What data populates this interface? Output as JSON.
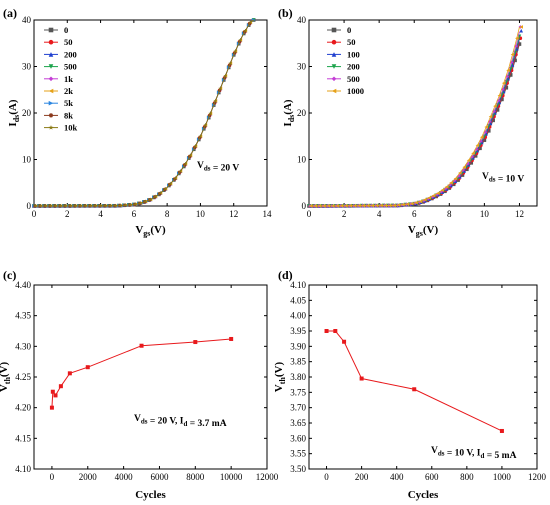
{
  "panels": {
    "a": {
      "label": "(a)"
    },
    "b": {
      "label": "(b)"
    },
    "c": {
      "label": "(c)"
    },
    "d": {
      "label": "(d)"
    }
  },
  "chart_data": [
    {
      "id": "a",
      "type": "line",
      "xlabel": "Vgs(V)",
      "ylabel": "Ids(A)",
      "xlim": [
        0,
        14
      ],
      "ylim": [
        0,
        40
      ],
      "xticks": [
        "0",
        "2",
        "4",
        "6",
        "8",
        "10",
        "12",
        "14"
      ],
      "yticks": [
        "0",
        "10",
        "20",
        "30",
        "40"
      ],
      "annotation": "Vds = 20 V",
      "legend_position": "top-left",
      "series": [
        {
          "name": "0",
          "color": "#555555",
          "marker": "square"
        },
        {
          "name": "50",
          "color": "#e8191c",
          "marker": "circle"
        },
        {
          "name": "200",
          "color": "#1f3fcf",
          "marker": "triangle-up"
        },
        {
          "name": "500",
          "color": "#1aa34a",
          "marker": "triangle-down"
        },
        {
          "name": "1k",
          "color": "#c43dd6",
          "marker": "diamond"
        },
        {
          "name": "2k",
          "color": "#e6a21a",
          "marker": "triangle-left"
        },
        {
          "name": "5k",
          "color": "#2b86e0",
          "marker": "triangle-right"
        },
        {
          "name": "8k",
          "color": "#8b3a1e",
          "marker": "hexagon"
        },
        {
          "name": "10k",
          "color": "#8a7a14",
          "marker": "star"
        }
      ],
      "curve": {
        "x": [
          0,
          5,
          6,
          6.5,
          7,
          7.5,
          8,
          8.5,
          9,
          9.5,
          10,
          10.5,
          11,
          11.5,
          12,
          12.5,
          13,
          13.2
        ],
        "y": [
          0,
          0.05,
          0.3,
          0.7,
          1.4,
          2.5,
          4,
          6,
          8.5,
          11.5,
          15,
          19,
          23.5,
          28,
          32.5,
          36.5,
          39.5,
          40
        ]
      }
    },
    {
      "id": "b",
      "type": "line",
      "xlabel": "Vgs(V)",
      "ylabel": "Ids(A)",
      "xlim": [
        0,
        13
      ],
      "ylim": [
        0,
        40
      ],
      "xticks": [
        "0",
        "2",
        "4",
        "6",
        "8",
        "10",
        "12"
      ],
      "yticks": [
        "0",
        "10",
        "20",
        "30",
        "40"
      ],
      "annotation": "Vds = 10 V",
      "legend_position": "top-left",
      "series": [
        {
          "name": "0",
          "color": "#555555",
          "marker": "square",
          "shift": 0.12
        },
        {
          "name": "50",
          "color": "#e8191c",
          "marker": "circle",
          "shift": 0.08
        },
        {
          "name": "100",
          "color": "#1f3fcf",
          "marker": "triangle-up",
          "shift": 0.04
        },
        {
          "name": "200",
          "color": "#1aa34a",
          "marker": "triangle-down",
          "shift": 0.0
        },
        {
          "name": "500",
          "color": "#c43dd6",
          "marker": "diamond",
          "shift": -0.05
        },
        {
          "name": "1000",
          "color": "#e6a21a",
          "marker": "triangle-left",
          "shift": -0.12
        }
      ],
      "curve": {
        "x": [
          0,
          5,
          6,
          6.5,
          7,
          7.5,
          8,
          8.5,
          9,
          9.5,
          10,
          10.5,
          11,
          11.5,
          12,
          12.1
        ],
        "y": [
          0,
          0.1,
          0.5,
          1,
          1.8,
          2.8,
          4.2,
          6,
          8.5,
          11.5,
          15,
          19.5,
          24,
          29.5,
          36.5,
          38.5
        ]
      }
    },
    {
      "id": "c",
      "type": "line",
      "xlabel": "Cycles",
      "ylabel": "Vth(V)",
      "xlim": [
        -1000,
        12000
      ],
      "ylim": [
        4.1,
        4.4
      ],
      "xticks": [
        "0",
        "2000",
        "4000",
        "6000",
        "8000",
        "10000",
        "12000"
      ],
      "yticks": [
        "4.10",
        "4.15",
        "4.20",
        "4.25",
        "4.30",
        "4.35",
        "4.40"
      ],
      "annotation": "Vds = 20 V, Id = 3.7 mA",
      "color": "#e8191c",
      "x": [
        0,
        50,
        200,
        500,
        1000,
        2000,
        5000,
        8000,
        10000
      ],
      "y": [
        4.2,
        4.226,
        4.22,
        4.235,
        4.256,
        4.266,
        4.301,
        4.307,
        4.312
      ]
    },
    {
      "id": "d",
      "type": "line",
      "xlabel": "Cycles",
      "ylabel": "Vth(V)",
      "xlim": [
        -100,
        1200
      ],
      "ylim": [
        3.5,
        4.1
      ],
      "xticks": [
        "0",
        "200",
        "400",
        "600",
        "800",
        "1000",
        "1200"
      ],
      "yticks": [
        "3.50",
        "3.55",
        "3.60",
        "3.65",
        "3.70",
        "3.75",
        "3.80",
        "3.85",
        "3.90",
        "3.95",
        "4.00",
        "4.05",
        "4.10"
      ],
      "annotation": "Vds = 10 V, Id = 5 mA",
      "color": "#e8191c",
      "x": [
        0,
        50,
        100,
        200,
        500,
        1000
      ],
      "y": [
        3.95,
        3.95,
        3.915,
        3.795,
        3.76,
        3.624
      ]
    }
  ]
}
